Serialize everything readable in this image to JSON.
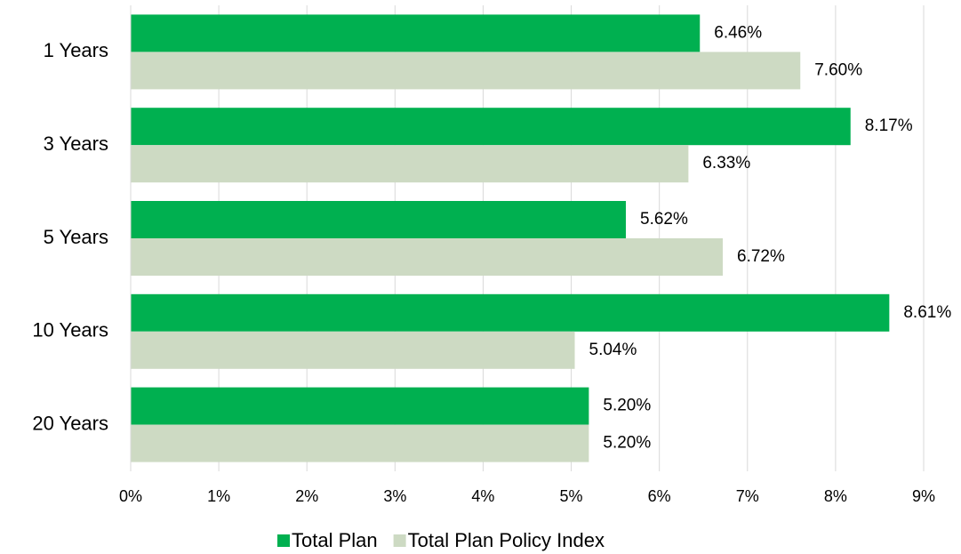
{
  "chart_data": {
    "type": "hbar",
    "categories": [
      "1 Years",
      "3 Years",
      "5 Years",
      "10 Years",
      "20 Years"
    ],
    "series": [
      {
        "name": "Total Plan",
        "color": "#00b050",
        "values": [
          6.46,
          8.17,
          5.62,
          8.61,
          5.2
        ],
        "value_labels": [
          "6.46%",
          "8.17%",
          "5.62%",
          "8.61%",
          "5.20%"
        ]
      },
      {
        "name": "Total Plan Policy Index",
        "color": "#cddac3",
        "values": [
          7.6,
          6.33,
          6.72,
          5.04,
          5.2
        ],
        "value_labels": [
          "7.60%",
          "6.33%",
          "6.72%",
          "5.04%",
          "5.20%"
        ]
      }
    ],
    "xlim": [
      0,
      9
    ],
    "xticks": [
      {
        "value": 0,
        "label": "0%"
      },
      {
        "value": 1,
        "label": "1%"
      },
      {
        "value": 2,
        "label": "2%"
      },
      {
        "value": 3,
        "label": "3%"
      },
      {
        "value": 4,
        "label": "4%"
      },
      {
        "value": 5,
        "label": "5%"
      },
      {
        "value": 6,
        "label": "6%"
      },
      {
        "value": 7,
        "label": "7%"
      },
      {
        "value": 8,
        "label": "8%"
      },
      {
        "value": 9,
        "label": "9%"
      }
    ],
    "grid": true,
    "legend": "bottom"
  }
}
